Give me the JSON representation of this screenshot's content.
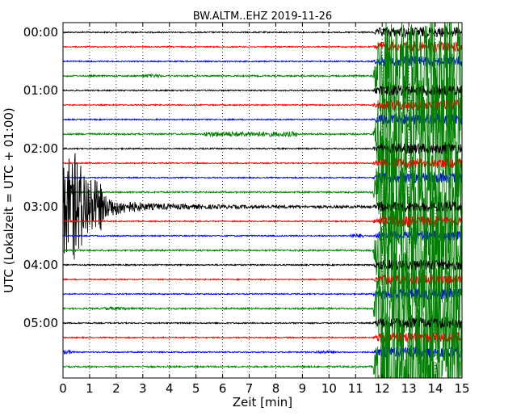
{
  "chart_data": {
    "type": "line",
    "title": "BW.ALTM..EHZ 2019-11-26",
    "xlabel": "Zeit  [min]",
    "ylabel": "UTC (Lokalzeit = UTC + 01:00)",
    "xlim": [
      0,
      15
    ],
    "x_ticks": [
      "0",
      "1",
      "2",
      "3",
      "4",
      "5",
      "6",
      "7",
      "8",
      "9",
      "10",
      "11",
      "12",
      "13",
      "14",
      "15"
    ],
    "y_ticks": [
      "00:00",
      "01:00",
      "02:00",
      "03:00",
      "04:00",
      "05:00"
    ],
    "y_tick_hours": [
      0,
      1,
      2,
      3,
      4,
      5
    ],
    "trace_interval_min": 15,
    "trace_color_cycle": [
      "#000000",
      "#ff0000",
      "#0000ff",
      "#008000"
    ],
    "grid": "vertical-dotted",
    "events": [
      {
        "trace": 0,
        "start_min": 11.6,
        "end_min": 15.0,
        "amplitude": "very large",
        "note": "strong oscillation continuing across all traces"
      },
      {
        "trace": 12,
        "start_min": 0.0,
        "end_min": 2.5,
        "amplitude": "large",
        "note": "decaying oscillation in 03:00 trace"
      }
    ]
  }
}
